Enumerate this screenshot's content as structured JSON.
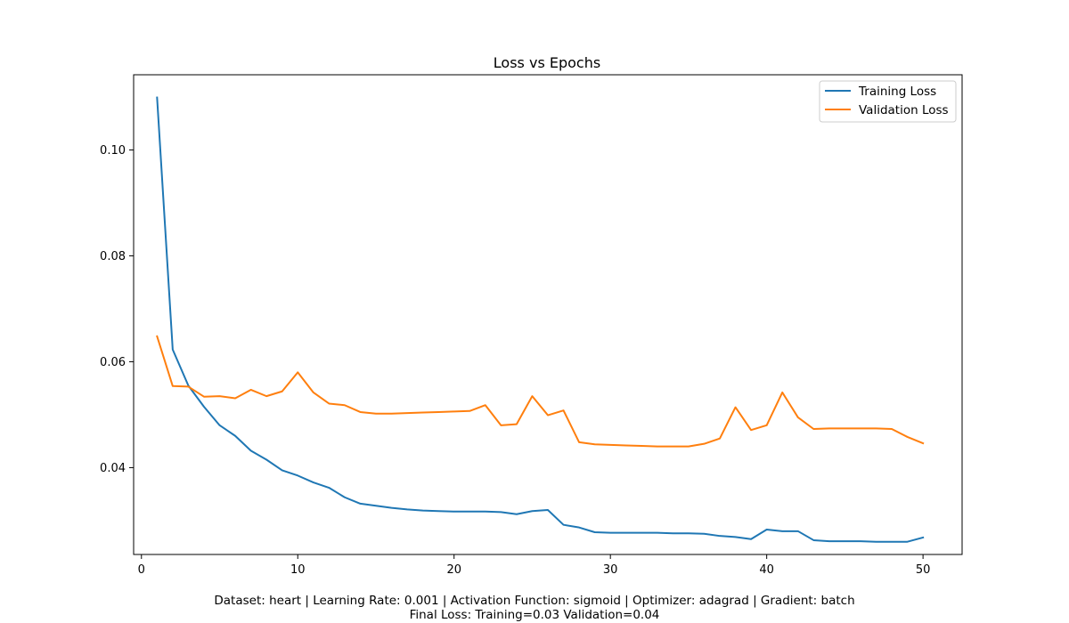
{
  "chart_data": {
    "type": "line",
    "title": "Loss vs Epochs",
    "xlabel": "",
    "ylabel": "",
    "xlim": [
      -0.5,
      52.5
    ],
    "ylim": [
      0.0236,
      0.1142
    ],
    "x_ticks": [
      0,
      10,
      20,
      30,
      40,
      50
    ],
    "y_ticks": [
      0.04,
      0.06,
      0.08,
      0.1
    ],
    "y_tick_labels": [
      "0.04",
      "0.06",
      "0.08",
      "0.10"
    ],
    "grid": false,
    "legend_position": "top-right",
    "x": [
      1,
      2,
      3,
      4,
      5,
      6,
      7,
      8,
      9,
      10,
      11,
      12,
      13,
      14,
      15,
      16,
      17,
      18,
      19,
      20,
      21,
      22,
      23,
      24,
      25,
      26,
      27,
      28,
      29,
      30,
      31,
      32,
      33,
      34,
      35,
      36,
      37,
      38,
      39,
      40,
      41,
      42,
      43,
      44,
      45,
      46,
      47,
      48,
      49,
      50
    ],
    "series": [
      {
        "name": "Training Loss",
        "color": "#1f77b4",
        "values": [
          0.1099,
          0.0623,
          0.0555,
          0.0515,
          0.048,
          0.046,
          0.0432,
          0.0415,
          0.0395,
          0.0385,
          0.0372,
          0.0362,
          0.0344,
          0.0332,
          0.0328,
          0.0324,
          0.0321,
          0.0319,
          0.0318,
          0.0317,
          0.0317,
          0.0317,
          0.0316,
          0.0312,
          0.0318,
          0.032,
          0.0292,
          0.0287,
          0.0278,
          0.0277,
          0.0277,
          0.0277,
          0.0277,
          0.0276,
          0.0276,
          0.0275,
          0.0271,
          0.0269,
          0.0265,
          0.0283,
          0.028,
          0.028,
          0.0263,
          0.0261,
          0.0261,
          0.0261,
          0.026,
          0.026,
          0.026,
          0.0268
        ]
      },
      {
        "name": "Validation Loss",
        "color": "#ff7f0e",
        "values": [
          0.0648,
          0.0554,
          0.0553,
          0.0534,
          0.0535,
          0.0531,
          0.0547,
          0.0535,
          0.0544,
          0.058,
          0.0542,
          0.0521,
          0.0518,
          0.0505,
          0.0502,
          0.0502,
          0.0503,
          0.0504,
          0.0505,
          0.0506,
          0.0507,
          0.0518,
          0.048,
          0.0482,
          0.0535,
          0.0499,
          0.0508,
          0.0448,
          0.0444,
          0.0443,
          0.0442,
          0.0441,
          0.044,
          0.044,
          0.044,
          0.0445,
          0.0455,
          0.0514,
          0.0471,
          0.048,
          0.0542,
          0.0495,
          0.0473,
          0.0474,
          0.0474,
          0.0474,
          0.0474,
          0.0473,
          0.0458,
          0.0446
        ]
      }
    ]
  },
  "caption": {
    "line1": "Dataset: heart | Learning Rate: 0.001 | Activation Function: sigmoid | Optimizer: adagrad | Gradient: batch",
    "line2": "Final Loss: Training=0.03 Validation=0.04"
  }
}
